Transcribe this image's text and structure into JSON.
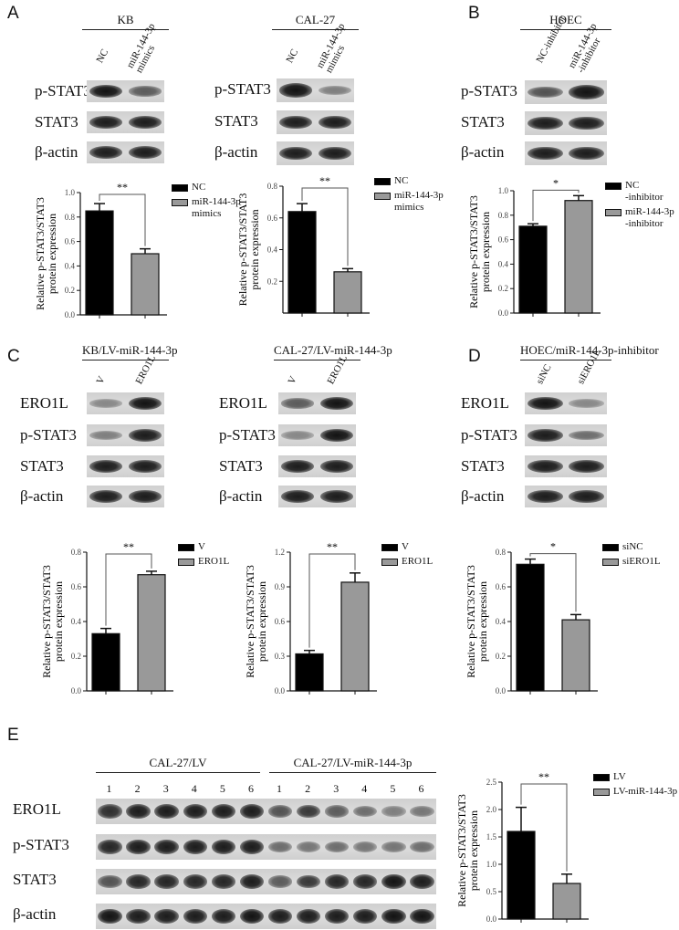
{
  "panels": {
    "A": {
      "letter": "A"
    },
    "B": {
      "letter": "B"
    },
    "C": {
      "letter": "C"
    },
    "D": {
      "letter": "D"
    },
    "E": {
      "letter": "E"
    }
  },
  "blots": [
    {
      "id": "A-KB",
      "header": "KB",
      "lanes": [
        "NC",
        "miR-144-3p\nmimics"
      ],
      "rows": [
        {
          "label": "p-STAT3",
          "intensity": [
            0.95,
            0.55
          ]
        },
        {
          "label": "STAT3",
          "intensity": [
            0.9,
            0.9
          ]
        },
        {
          "label": "β-actin",
          "intensity": [
            0.9,
            0.9
          ]
        }
      ]
    },
    {
      "id": "A-CAL27",
      "header": "CAL-27",
      "lanes": [
        "NC",
        "miR-144-3p\nmimics"
      ],
      "rows": [
        {
          "label": "p-STAT3",
          "intensity": [
            0.95,
            0.35
          ]
        },
        {
          "label": "STAT3",
          "intensity": [
            0.9,
            0.9
          ]
        },
        {
          "label": "β-actin",
          "intensity": [
            0.9,
            0.9
          ]
        }
      ]
    },
    {
      "id": "B-HOEC",
      "header": "HOEC",
      "lanes": [
        "NC-inhibitor",
        "miR-144-3p\n-inhibitor"
      ],
      "rows": [
        {
          "label": "p-STAT3",
          "intensity": [
            0.6,
            0.95
          ]
        },
        {
          "label": "STAT3",
          "intensity": [
            0.9,
            0.9
          ]
        },
        {
          "label": "β-actin",
          "intensity": [
            0.9,
            0.9
          ]
        }
      ]
    },
    {
      "id": "C-KB",
      "header": "KB/LV-miR-144-3p",
      "lanes": [
        "V",
        "ERO1L"
      ],
      "rows": [
        {
          "label": "ERO1L",
          "intensity": [
            0.3,
            0.95
          ]
        },
        {
          "label": "p-STAT3",
          "intensity": [
            0.35,
            0.9
          ]
        },
        {
          "label": "STAT3",
          "intensity": [
            0.9,
            0.9
          ]
        },
        {
          "label": "β-actin",
          "intensity": [
            0.9,
            0.9
          ]
        }
      ]
    },
    {
      "id": "C-CAL27",
      "header": "CAL-27/LV-miR-144-3p",
      "lanes": [
        "V",
        "ERO1L"
      ],
      "rows": [
        {
          "label": "ERO1L",
          "intensity": [
            0.55,
            0.95
          ]
        },
        {
          "label": "p-STAT3",
          "intensity": [
            0.3,
            0.95
          ]
        },
        {
          "label": "STAT3",
          "intensity": [
            0.9,
            0.9
          ]
        },
        {
          "label": "β-actin",
          "intensity": [
            0.9,
            0.9
          ]
        }
      ]
    },
    {
      "id": "D-HOEC",
      "header": "HOEC/miR-144-3p-inhibitor",
      "lanes": [
        "siNC",
        "siERO1L"
      ],
      "rows": [
        {
          "label": "ERO1L",
          "intensity": [
            0.95,
            0.3
          ]
        },
        {
          "label": "p-STAT3",
          "intensity": [
            0.9,
            0.45
          ]
        },
        {
          "label": "STAT3",
          "intensity": [
            0.9,
            0.9
          ]
        },
        {
          "label": "β-actin",
          "intensity": [
            0.9,
            0.9
          ]
        }
      ]
    },
    {
      "id": "E",
      "headers": [
        "CAL-27/LV",
        "CAL-27/LV-miR-144-3p"
      ],
      "lanes": [
        "1",
        "2",
        "3",
        "4",
        "5",
        "6",
        "1",
        "2",
        "3",
        "4",
        "5",
        "6"
      ],
      "rows": [
        {
          "label": "ERO1L",
          "intensity": [
            0.8,
            0.9,
            0.9,
            0.9,
            0.9,
            0.9,
            0.6,
            0.75,
            0.55,
            0.45,
            0.35,
            0.4
          ]
        },
        {
          "label": "p-STAT3",
          "intensity": [
            0.85,
            0.9,
            0.9,
            0.9,
            0.9,
            0.9,
            0.45,
            0.4,
            0.45,
            0.4,
            0.4,
            0.45
          ]
        },
        {
          "label": "STAT3",
          "intensity": [
            0.6,
            0.85,
            0.85,
            0.85,
            0.85,
            0.9,
            0.55,
            0.75,
            0.85,
            0.85,
            0.95,
            0.9
          ]
        },
        {
          "label": "β-actin",
          "intensity": [
            0.95,
            0.9,
            0.9,
            0.9,
            0.9,
            0.95,
            0.9,
            0.9,
            0.9,
            0.9,
            0.95,
            0.95
          ]
        }
      ]
    }
  ],
  "chart_data": [
    {
      "id": "A-KB",
      "type": "bar",
      "ylabel": [
        "Relative p-STAT3/STAT3",
        "protein expression"
      ],
      "ylim": [
        0,
        1.0
      ],
      "yticks": [
        "0.0",
        "0.2",
        "0.4",
        "0.6",
        "0.8",
        "1.0"
      ],
      "series": [
        {
          "name": "NC",
          "value": 0.85,
          "error": 0.06,
          "color": "#000000"
        },
        {
          "name": "miR-144-3p\nmimics",
          "value": 0.5,
          "error": 0.04,
          "color": "#999999"
        }
      ],
      "significance": "**",
      "legend": "right"
    },
    {
      "id": "A-CAL27",
      "type": "bar",
      "ylabel": [
        "Relative p-STAT3/STAT3",
        "protein expression"
      ],
      "ylim": [
        0,
        0.8
      ],
      "yticks": [
        "0.2",
        "0.4",
        "0.6",
        "0.8"
      ],
      "series": [
        {
          "name": "NC",
          "value": 0.64,
          "error": 0.05,
          "color": "#000000"
        },
        {
          "name": "miR-144-3p\nmimics",
          "value": 0.26,
          "error": 0.02,
          "color": "#999999"
        }
      ],
      "significance": "**",
      "legend": "right"
    },
    {
      "id": "B-HOEC",
      "type": "bar",
      "ylabel": [
        "Relative p-STAT3/STAT3",
        "protein expression"
      ],
      "ylim": [
        0,
        1.0
      ],
      "yticks": [
        "0.0",
        "0.2",
        "0.4",
        "0.6",
        "0.8",
        "1.0"
      ],
      "series": [
        {
          "name": "NC\n-inhibitor",
          "value": 0.71,
          "error": 0.02,
          "color": "#000000"
        },
        {
          "name": "miR-144-3p\n-inhibitor",
          "value": 0.92,
          "error": 0.04,
          "color": "#999999"
        }
      ],
      "significance": "*",
      "legend": "right"
    },
    {
      "id": "C-KB",
      "type": "bar",
      "ylabel": [
        "Relative p-STAT3/STAT3",
        "protein expression"
      ],
      "ylim": [
        0,
        0.8
      ],
      "yticks": [
        "0.0",
        "0.2",
        "0.4",
        "0.6",
        "0.8"
      ],
      "series": [
        {
          "name": "V",
          "value": 0.33,
          "error": 0.03,
          "color": "#000000"
        },
        {
          "name": "ERO1L",
          "value": 0.67,
          "error": 0.02,
          "color": "#999999"
        }
      ],
      "significance": "**",
      "legend": "right"
    },
    {
      "id": "C-CAL27",
      "type": "bar",
      "ylabel": [
        "Relative p-STAT3/STAT3",
        "protein expression"
      ],
      "ylim": [
        0,
        1.2
      ],
      "yticks": [
        "0.0",
        "0.3",
        "0.6",
        "0.9",
        "1.2"
      ],
      "series": [
        {
          "name": "V",
          "value": 0.32,
          "error": 0.03,
          "color": "#000000"
        },
        {
          "name": "ERO1L",
          "value": 0.94,
          "error": 0.08,
          "color": "#999999"
        }
      ],
      "significance": "**",
      "legend": "right"
    },
    {
      "id": "D-HOEC",
      "type": "bar",
      "ylabel": [
        "Relative p-STAT3/STAT3",
        "protein expression"
      ],
      "ylim": [
        0,
        0.8
      ],
      "yticks": [
        "0.0",
        "0.2",
        "0.4",
        "0.6",
        "0.8"
      ],
      "series": [
        {
          "name": "siNC",
          "value": 0.73,
          "error": 0.03,
          "color": "#000000"
        },
        {
          "name": "siERO1L",
          "value": 0.41,
          "error": 0.03,
          "color": "#999999"
        }
      ],
      "significance": "*",
      "legend": "right"
    },
    {
      "id": "E",
      "type": "bar",
      "ylabel": [
        "Relative p-STAT3/STAT3",
        "protein expression"
      ],
      "ylim": [
        0,
        2.5
      ],
      "yticks": [
        "0.0",
        "0.5",
        "1.0",
        "1.5",
        "2.0",
        "2.5"
      ],
      "series": [
        {
          "name": "LV",
          "value": 1.6,
          "error": 0.44,
          "color": "#000000"
        },
        {
          "name": "LV-miR-144-3p",
          "value": 0.65,
          "error": 0.17,
          "color": "#999999"
        }
      ],
      "significance": "**",
      "legend": "right"
    }
  ]
}
